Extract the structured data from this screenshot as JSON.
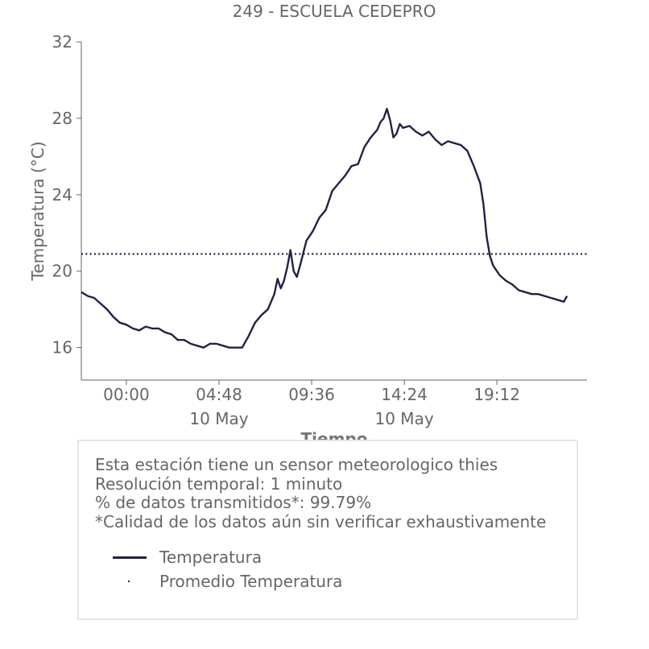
{
  "chart_data": {
    "type": "line",
    "title": "249 - ESCUELA CEDEPRO",
    "xlabel": "Tiempo",
    "ylabel": "Temperatura (°C)",
    "ylim": [
      14.3,
      32
    ],
    "yticks": [
      16,
      20,
      24,
      28,
      32
    ],
    "xlim": [
      "2024-05-09 21:40",
      "2024-05-10 23:52"
    ],
    "xticks": [
      {
        "time": "2024-05-10 00:00",
        "label": "00:00",
        "sublabel": ""
      },
      {
        "time": "2024-05-10 04:48",
        "label": "04:48",
        "sublabel": "10 May"
      },
      {
        "time": "2024-05-10 09:36",
        "label": "09:36",
        "sublabel": ""
      },
      {
        "time": "2024-05-10 14:24",
        "label": "14:24",
        "sublabel": "10 May"
      },
      {
        "time": "2024-05-10 19:12",
        "label": "19:12",
        "sublabel": ""
      }
    ],
    "grid": false,
    "series": [
      {
        "name": "Temperatura",
        "color": "#222244",
        "style": "solid",
        "points": [
          [
            "2024-05-09 21:40",
            18.9
          ],
          [
            "2024-05-09 22:00",
            18.7
          ],
          [
            "2024-05-09 22:20",
            18.6
          ],
          [
            "2024-05-09 22:40",
            18.3
          ],
          [
            "2024-05-09 23:00",
            18.0
          ],
          [
            "2024-05-09 23:20",
            17.6
          ],
          [
            "2024-05-09 23:40",
            17.3
          ],
          [
            "2024-05-10 00:00",
            17.2
          ],
          [
            "2024-05-10 00:20",
            17.0
          ],
          [
            "2024-05-10 00:40",
            16.9
          ],
          [
            "2024-05-10 01:00",
            17.1
          ],
          [
            "2024-05-10 01:20",
            17.0
          ],
          [
            "2024-05-10 01:40",
            17.0
          ],
          [
            "2024-05-10 02:00",
            16.8
          ],
          [
            "2024-05-10 02:20",
            16.7
          ],
          [
            "2024-05-10 02:40",
            16.4
          ],
          [
            "2024-05-10 03:00",
            16.4
          ],
          [
            "2024-05-10 03:20",
            16.2
          ],
          [
            "2024-05-10 03:40",
            16.1
          ],
          [
            "2024-05-10 04:00",
            16.0
          ],
          [
            "2024-05-10 04:20",
            16.2
          ],
          [
            "2024-05-10 04:40",
            16.2
          ],
          [
            "2024-05-10 05:00",
            16.1
          ],
          [
            "2024-05-10 05:20",
            16.0
          ],
          [
            "2024-05-10 05:40",
            16.0
          ],
          [
            "2024-05-10 06:00",
            16.0
          ],
          [
            "2024-05-10 06:20",
            16.6
          ],
          [
            "2024-05-10 06:40",
            17.3
          ],
          [
            "2024-05-10 07:00",
            17.7
          ],
          [
            "2024-05-10 07:20",
            18.0
          ],
          [
            "2024-05-10 07:40",
            18.8
          ],
          [
            "2024-05-10 07:50",
            19.6
          ],
          [
            "2024-05-10 08:00",
            19.1
          ],
          [
            "2024-05-10 08:10",
            19.5
          ],
          [
            "2024-05-10 08:20",
            20.2
          ],
          [
            "2024-05-10 08:30",
            21.1
          ],
          [
            "2024-05-10 08:40",
            20.0
          ],
          [
            "2024-05-10 08:50",
            19.7
          ],
          [
            "2024-05-10 09:00",
            20.3
          ],
          [
            "2024-05-10 09:20",
            21.6
          ],
          [
            "2024-05-10 09:40",
            22.1
          ],
          [
            "2024-05-10 10:00",
            22.8
          ],
          [
            "2024-05-10 10:20",
            23.2
          ],
          [
            "2024-05-10 10:40",
            24.2
          ],
          [
            "2024-05-10 11:00",
            24.6
          ],
          [
            "2024-05-10 11:20",
            25.0
          ],
          [
            "2024-05-10 11:40",
            25.5
          ],
          [
            "2024-05-10 12:00",
            25.6
          ],
          [
            "2024-05-10 12:20",
            26.5
          ],
          [
            "2024-05-10 12:40",
            27.0
          ],
          [
            "2024-05-10 13:00",
            27.4
          ],
          [
            "2024-05-10 13:10",
            27.8
          ],
          [
            "2024-05-10 13:20",
            28.0
          ],
          [
            "2024-05-10 13:30",
            28.5
          ],
          [
            "2024-05-10 13:40",
            27.9
          ],
          [
            "2024-05-10 13:50",
            27.0
          ],
          [
            "2024-05-10 14:00",
            27.2
          ],
          [
            "2024-05-10 14:10",
            27.7
          ],
          [
            "2024-05-10 14:20",
            27.5
          ],
          [
            "2024-05-10 14:40",
            27.6
          ],
          [
            "2024-05-10 15:00",
            27.3
          ],
          [
            "2024-05-10 15:20",
            27.1
          ],
          [
            "2024-05-10 15:40",
            27.3
          ],
          [
            "2024-05-10 16:00",
            26.9
          ],
          [
            "2024-05-10 16:20",
            26.6
          ],
          [
            "2024-05-10 16:40",
            26.8
          ],
          [
            "2024-05-10 17:00",
            26.7
          ],
          [
            "2024-05-10 17:20",
            26.6
          ],
          [
            "2024-05-10 17:40",
            26.3
          ],
          [
            "2024-05-10 18:00",
            25.5
          ],
          [
            "2024-05-10 18:20",
            24.6
          ],
          [
            "2024-05-10 18:30",
            23.5
          ],
          [
            "2024-05-10 18:40",
            21.8
          ],
          [
            "2024-05-10 18:50",
            20.8
          ],
          [
            "2024-05-10 19:00",
            20.3
          ],
          [
            "2024-05-10 19:20",
            19.8
          ],
          [
            "2024-05-10 19:40",
            19.5
          ],
          [
            "2024-05-10 20:00",
            19.3
          ],
          [
            "2024-05-10 20:20",
            19.0
          ],
          [
            "2024-05-10 20:40",
            18.9
          ],
          [
            "2024-05-10 21:00",
            18.8
          ],
          [
            "2024-05-10 21:20",
            18.8
          ],
          [
            "2024-05-10 21:40",
            18.7
          ],
          [
            "2024-05-10 22:00",
            18.6
          ],
          [
            "2024-05-10 22:20",
            18.5
          ],
          [
            "2024-05-10 22:40",
            18.4
          ],
          [
            "2024-05-10 22:50",
            18.7
          ]
        ]
      },
      {
        "name": "Promedio Temperatura",
        "color": "#222244",
        "style": "dotted",
        "value": 20.9
      }
    ]
  },
  "info": {
    "lines": [
      "Esta estación tiene un sensor meteorologico thies",
      "Resolución temporal: 1 minuto",
      "% de datos transmitidos*: 99.79%",
      "*Calidad de los datos aún sin verificar exhaustivamente"
    ],
    "legend": [
      {
        "label": "Temperatura"
      },
      {
        "label": "Promedio Temperatura"
      }
    ]
  }
}
